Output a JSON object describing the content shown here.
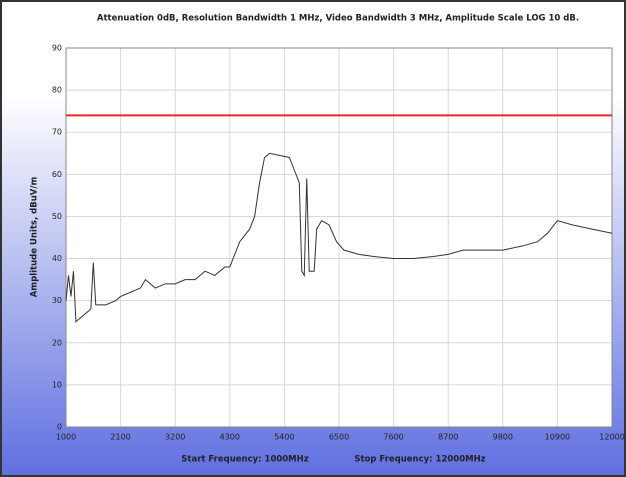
{
  "chart_data": {
    "type": "line",
    "title": "Attenuation 0dB, Resolution Bandwidth 1 MHz, Video Bandwidth 3 MHz, Amplitude Scale LOG 10 dB.",
    "y_label": "Amplitude Units, dBuV/m",
    "x_label_start": "Start Frequency: 1000MHz",
    "x_label_stop": "Stop Frequency: 12000MHz",
    "xlim": [
      1000,
      12000
    ],
    "xticks": [
      1000,
      2100,
      3200,
      4300,
      5400,
      6500,
      7600,
      8700,
      9800,
      10900,
      12000
    ],
    "ylim": [
      0,
      90
    ],
    "yticks": [
      0,
      10,
      20,
      30,
      40,
      50,
      60,
      70,
      80,
      90
    ],
    "grid": true,
    "series": [
      {
        "color": "#333333",
        "x": [
          1000,
          1050,
          1100,
          1150,
          1200,
          1300,
          1400,
          1500,
          1550,
          1600,
          1800,
          2000,
          2100,
          2300,
          2500,
          2600,
          2800,
          3000,
          3200,
          3400,
          3600,
          3800,
          4000,
          4200,
          4300,
          4500,
          4700,
          4800,
          4900,
          5000,
          5100,
          5300,
          5500,
          5600,
          5700,
          5750,
          5800,
          5850,
          5900,
          6000,
          6050,
          6150,
          6300,
          6450,
          6600,
          6900,
          7200,
          7600,
          8000,
          8400,
          8700,
          9000,
          9400,
          9800,
          10200,
          10500,
          10700,
          10900,
          11200,
          11600,
          12000
        ],
        "values": [
          30,
          36,
          31,
          37,
          25,
          26,
          27,
          28,
          39,
          29,
          29,
          30,
          31,
          32,
          33,
          35,
          33,
          34,
          34,
          35,
          35,
          37,
          36,
          38,
          38,
          44,
          47,
          50,
          58,
          64,
          65,
          64.5,
          64,
          61,
          58,
          37,
          36,
          59,
          37,
          37,
          47,
          49,
          48,
          44,
          42,
          41,
          40.5,
          40,
          40,
          40.5,
          41,
          42,
          42,
          42,
          43,
          44,
          46,
          49,
          48,
          47,
          46
        ]
      },
      {
        "color": "#e8282b",
        "x": [
          1000,
          12000
        ],
        "values": [
          74,
          74
        ]
      }
    ]
  }
}
